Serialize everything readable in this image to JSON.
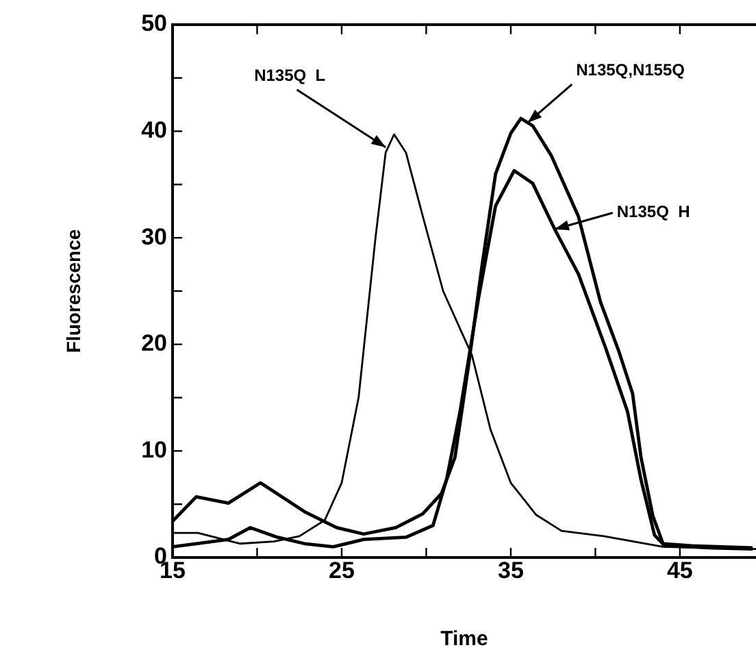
{
  "chart_data": {
    "type": "line",
    "xlabel": "Time",
    "ylabel": "Fluorescence",
    "xlim": [
      15,
      49.5
    ],
    "ylim": [
      0,
      50
    ],
    "xticks": [
      15,
      {
        "value": 20,
        "label": null
      },
      25,
      {
        "value": 30,
        "label": null
      },
      35,
      {
        "value": 40,
        "label": null
      },
      45
    ],
    "yticks": [
      0,
      {
        "value": 5,
        "label": null
      },
      10,
      {
        "value": 15,
        "label": null
      },
      20,
      {
        "value": 25,
        "label": null
      },
      30,
      {
        "value": 35,
        "label": null
      },
      40,
      {
        "value": 45,
        "label": null
      },
      50
    ],
    "grid": false,
    "legend": false,
    "marker": "none",
    "line_style": "solid",
    "series": [
      {
        "color": "#000000",
        "x": [
          15,
          16.5,
          19,
          21,
          22.5,
          24,
          25,
          26,
          27,
          27.6,
          28.1,
          28.8,
          29.8,
          31,
          32.7,
          33.8,
          35,
          36.5,
          38,
          40.5,
          44,
          49.5
        ],
        "values": [
          2.3,
          2.3,
          1.3,
          1.5,
          2,
          3.5,
          7,
          15,
          30,
          38,
          39.7,
          38,
          32,
          25,
          19,
          12,
          7,
          4,
          2.5,
          2,
          1,
          0.8
        ]
      },
      {
        "color": "#000000",
        "x": [
          15,
          16.4,
          18.3,
          20.2,
          22.8,
          24.7,
          26.3,
          28.2,
          29.8,
          30.9,
          31.7,
          32.5,
          33.3,
          34.1,
          35,
          35.6,
          36.3,
          37.4,
          39,
          40.3,
          41.4,
          42.2,
          42.7,
          43.4,
          44,
          45.7,
          49.3
        ],
        "values": [
          3.4,
          5.7,
          5.1,
          7,
          4.3,
          2.8,
          2.2,
          2.8,
          4.1,
          6,
          9.4,
          18,
          27.4,
          36,
          39.8,
          41.2,
          40.5,
          37.7,
          32,
          24,
          19.3,
          15.4,
          9.4,
          3.9,
          1.3,
          1.1,
          0.9
        ]
      },
      {
        "color": "#000000",
        "x": [
          15,
          16.4,
          18.3,
          19.6,
          21.2,
          22.8,
          24.5,
          26.3,
          28.8,
          30.4,
          31.2,
          32,
          33.1,
          34.1,
          35.2,
          36.3,
          37.6,
          39,
          40.6,
          41.9,
          42.7,
          43.5,
          44.1,
          47,
          49.3
        ],
        "values": [
          1,
          1.3,
          1.7,
          2.8,
          1.9,
          1.3,
          1,
          1.7,
          1.9,
          3,
          7.3,
          13.7,
          24.4,
          33,
          36.3,
          35.1,
          30.8,
          26.6,
          19.7,
          13.7,
          7.3,
          2.1,
          1.1,
          0.9,
          0.8
        ]
      }
    ],
    "annotations": [
      {
        "text": "N135Q  L",
        "x": 27.6,
        "y": 38.5
      },
      {
        "text": "N135Q,N155Q",
        "x": 36,
        "y": 40.8
      },
      {
        "text": "N135Q  H",
        "x": 37.6,
        "y": 30.8
      }
    ]
  }
}
